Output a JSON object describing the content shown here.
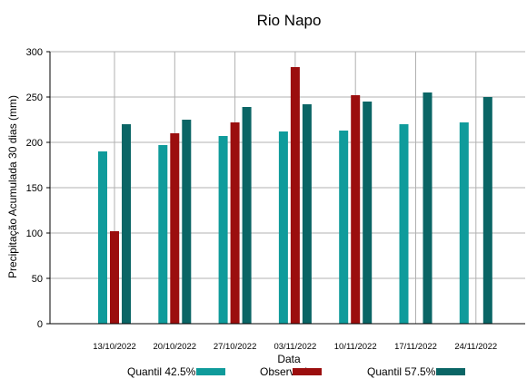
{
  "chart_data": {
    "type": "bar",
    "title": "Rio Napo",
    "xlabel": "Data",
    "ylabel": "Precipitação Acumulada 30 dias (mm)",
    "ylim": [
      0,
      300
    ],
    "yticks": [
      0,
      50,
      100,
      150,
      200,
      250,
      300
    ],
    "grid": true,
    "legend_position": "bottom",
    "categories": [
      "13/10/2022",
      "20/10/2022",
      "27/10/2022",
      "03/11/2022",
      "10/11/2022",
      "17/11/2022",
      "24/11/2022"
    ],
    "series": [
      {
        "name": "Quantil 42.5%",
        "color": "#0f9b9b",
        "values": [
          190,
          197,
          207,
          212,
          213,
          220,
          222
        ]
      },
      {
        "name": "Observado",
        "color": "#9b0e0e",
        "values": [
          102,
          210,
          222,
          283,
          252,
          null,
          null
        ]
      },
      {
        "name": "Quantil 57.5%",
        "color": "#0a6565",
        "values": [
          220,
          225,
          239,
          242,
          245,
          255,
          250
        ]
      }
    ]
  }
}
